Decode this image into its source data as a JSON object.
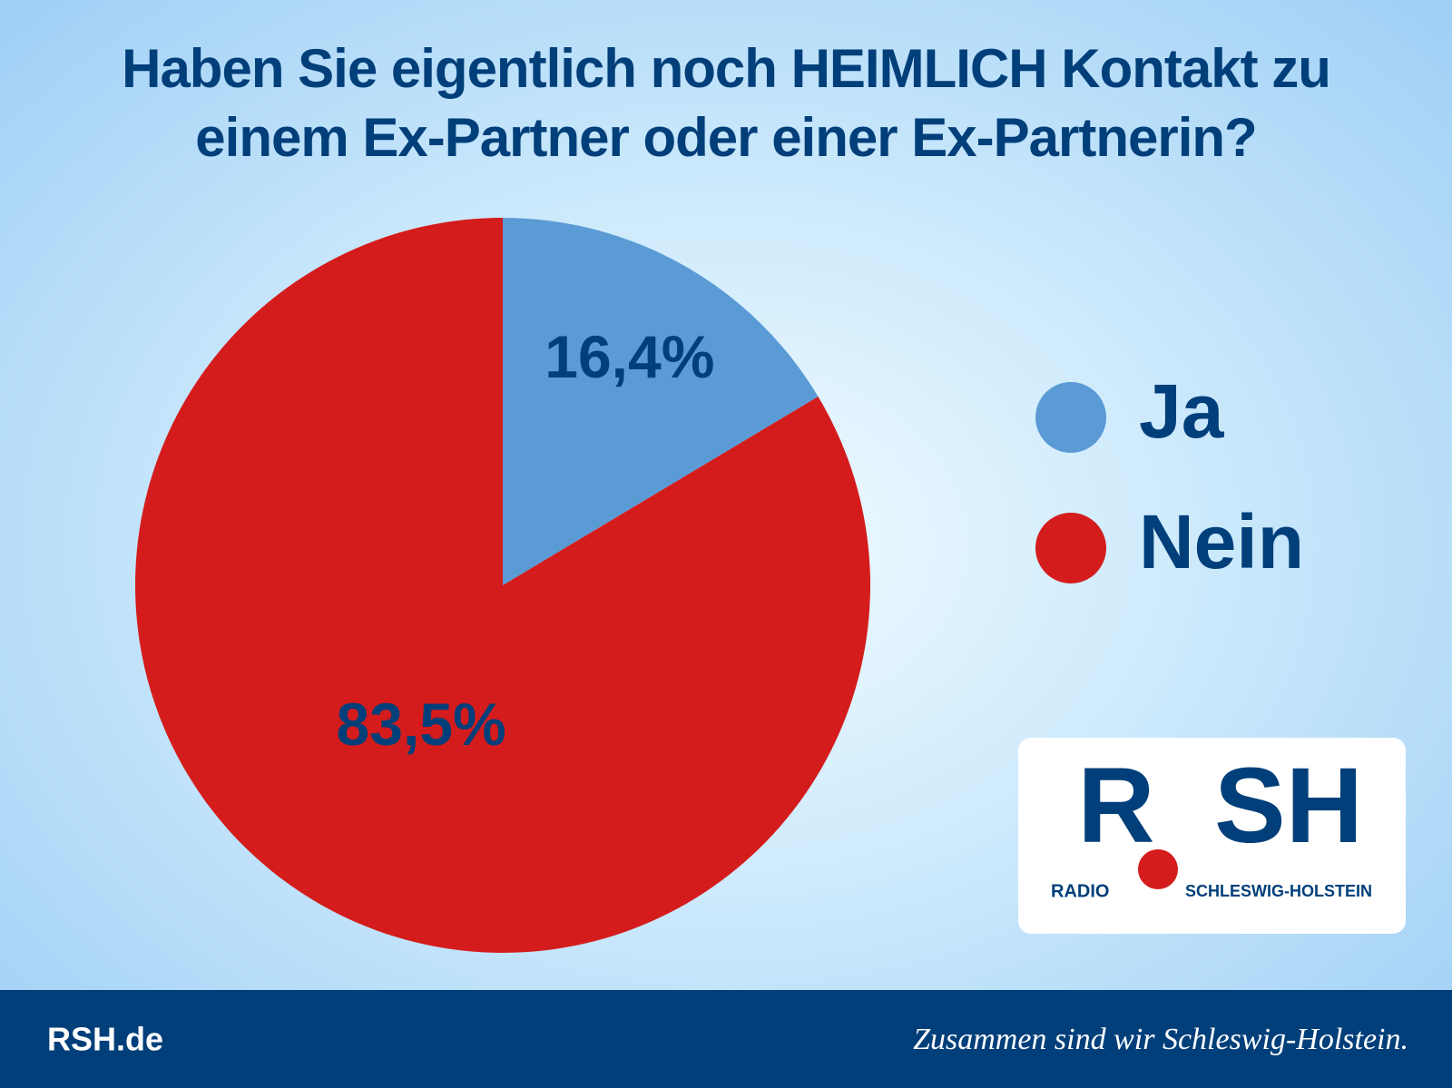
{
  "chart_data": {
    "type": "pie",
    "title": "Haben Sie eigentlich noch HEIMLICH Kontakt zu einem Ex-Partner oder einer Ex-Partnerin?",
    "categories": [
      "Ja",
      "Nein"
    ],
    "values": [
      16.4,
      83.5
    ],
    "value_labels": [
      "16,4%",
      "83,5%"
    ],
    "colors": [
      "#5b9bd5",
      "#d41c1c"
    ],
    "legend": "right"
  },
  "logo": {
    "mark_left": "R",
    "mark_right": "SH",
    "sub_left": "RADIO",
    "sub_right": "SCHLESWIG-HOLSTEIN"
  },
  "footer": {
    "site": "RSH.de",
    "slogan": "Zusammen sind wir Schleswig-Holstein."
  }
}
